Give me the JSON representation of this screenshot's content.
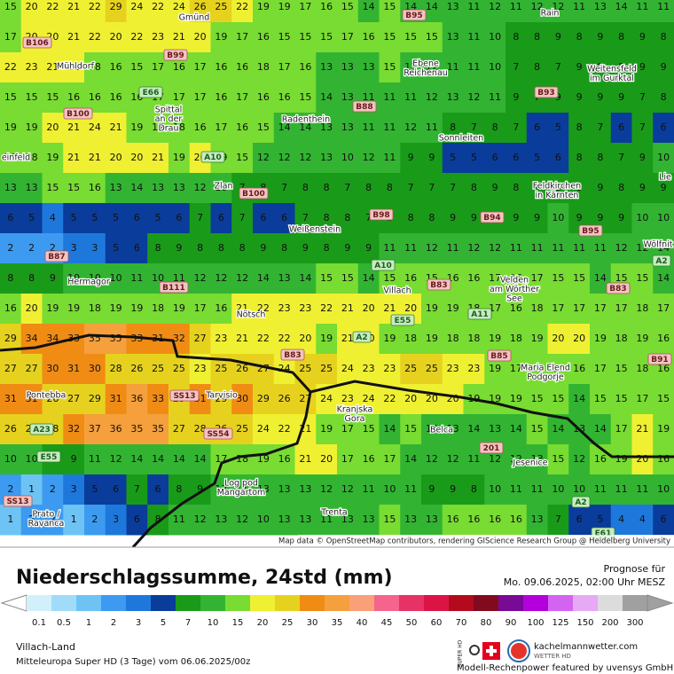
{
  "map": {
    "rows": [
      [
        15,
        20,
        22,
        21,
        22,
        29,
        24,
        22,
        24,
        26,
        25,
        22,
        19,
        19,
        17,
        16,
        15,
        14,
        15,
        14,
        14,
        13,
        11,
        12,
        11,
        12,
        12,
        11,
        13,
        14,
        11,
        11
      ],
      [
        17,
        20,
        20,
        21,
        22,
        20,
        22,
        23,
        21,
        20,
        19,
        17,
        16,
        15,
        15,
        15,
        17,
        16,
        15,
        15,
        15,
        13,
        11,
        10,
        8,
        8,
        9,
        8,
        9,
        8,
        9,
        8
      ],
      [
        22,
        23,
        21,
        21,
        18,
        16,
        15,
        17,
        16,
        17,
        16,
        16,
        18,
        17,
        16,
        13,
        13,
        13,
        15,
        13,
        12,
        11,
        11,
        10,
        7,
        8,
        7,
        9,
        9,
        8,
        9,
        9
      ],
      [
        15,
        15,
        15,
        16,
        16,
        16,
        16,
        17,
        17,
        17,
        16,
        17,
        16,
        16,
        15,
        14,
        13,
        11,
        11,
        11,
        12,
        13,
        12,
        11,
        9,
        7,
        9,
        9,
        9,
        9,
        7,
        8
      ],
      [
        19,
        19,
        20,
        21,
        24,
        21,
        19,
        17,
        18,
        16,
        17,
        16,
        15,
        14,
        14,
        13,
        13,
        11,
        11,
        12,
        11,
        8,
        7,
        8,
        7,
        6,
        5,
        8,
        7,
        6,
        7,
        6
      ],
      [
        18,
        18,
        19,
        21,
        21,
        20,
        20,
        21,
        19,
        20,
        19,
        15,
        12,
        12,
        12,
        13,
        10,
        12,
        11,
        9,
        9,
        5,
        5,
        6,
        6,
        5,
        6,
        8,
        8,
        7,
        9,
        10
      ],
      [
        13,
        13,
        15,
        15,
        16,
        13,
        14,
        13,
        13,
        12,
        10,
        7,
        8,
        7,
        8,
        8,
        7,
        8,
        8,
        7,
        7,
        7,
        8,
        9,
        8,
        9,
        9,
        8,
        9,
        8,
        9,
        9
      ],
      [
        6,
        5,
        4,
        5,
        5,
        5,
        6,
        5,
        6,
        7,
        6,
        7,
        6,
        6,
        7,
        8,
        8,
        7,
        8,
        8,
        8,
        9,
        9,
        9,
        9,
        9,
        10,
        9,
        9,
        9,
        10,
        10
      ],
      [
        2,
        2,
        2,
        3,
        3,
        5,
        6,
        8,
        9,
        8,
        8,
        8,
        9,
        8,
        9,
        8,
        9,
        9,
        11,
        11,
        12,
        11,
        12,
        12,
        11,
        11,
        11,
        11,
        11,
        12,
        12,
        14
      ],
      [
        8,
        8,
        9,
        10,
        10,
        10,
        11,
        10,
        11,
        12,
        12,
        12,
        14,
        13,
        14,
        15,
        15,
        14,
        15,
        16,
        15,
        16,
        16,
        17,
        16,
        17,
        15,
        15,
        14,
        15,
        15,
        14
      ],
      [
        16,
        20,
        19,
        19,
        18,
        19,
        19,
        18,
        19,
        17,
        16,
        21,
        22,
        23,
        23,
        22,
        21,
        20,
        21,
        20,
        19,
        19,
        18,
        17,
        16,
        18,
        17,
        17,
        17,
        17,
        18,
        17
      ],
      [
        29,
        34,
        34,
        33,
        35,
        35,
        33,
        31,
        32,
        27,
        23,
        21,
        22,
        22,
        20,
        19,
        21,
        20,
        19,
        18,
        19,
        18,
        18,
        19,
        18,
        19,
        20,
        20,
        19,
        18,
        19,
        16
      ],
      [
        27,
        27,
        30,
        31,
        30,
        28,
        26,
        25,
        25,
        23,
        25,
        26,
        27,
        24,
        25,
        25,
        24,
        23,
        23,
        25,
        25,
        23,
        23,
        19,
        17,
        15,
        16,
        16,
        17,
        15,
        18,
        16
      ],
      [
        31,
        31,
        26,
        27,
        29,
        31,
        36,
        33,
        29,
        31,
        29,
        30,
        29,
        26,
        27,
        24,
        23,
        24,
        22,
        20,
        20,
        20,
        19,
        19,
        19,
        15,
        15,
        14,
        15,
        15,
        17,
        15
      ],
      [
        26,
        29,
        28,
        32,
        37,
        36,
        35,
        35,
        27,
        28,
        26,
        25,
        24,
        22,
        21,
        19,
        17,
        15,
        14,
        15,
        14,
        13,
        14,
        13,
        14,
        15,
        14,
        13,
        14,
        17,
        21,
        19
      ],
      [
        10,
        10,
        8,
        9,
        11,
        12,
        14,
        14,
        14,
        14,
        17,
        18,
        19,
        16,
        21,
        20,
        17,
        16,
        17,
        14,
        12,
        12,
        11,
        12,
        12,
        13,
        15,
        12,
        16,
        19,
        20,
        16
      ],
      [
        2,
        1,
        2,
        3,
        5,
        6,
        7,
        6,
        8,
        9,
        13,
        11,
        13,
        13,
        13,
        12,
        12,
        11,
        10,
        11,
        9,
        9,
        8,
        10,
        11,
        11,
        10,
        10,
        11,
        11,
        11,
        10
      ],
      [
        1,
        2,
        2,
        1,
        2,
        3,
        6,
        8,
        11,
        12,
        13,
        12,
        10,
        13,
        13,
        11,
        13,
        13,
        15,
        13,
        13,
        16,
        16,
        16,
        16,
        13,
        7,
        6,
        5,
        4,
        4,
        6
      ]
    ],
    "places": [
      [
        "Gmünd"
      ],
      [
        "Rain"
      ],
      [
        "Mühldorf"
      ],
      [
        "Ebene",
        "Reichenau"
      ],
      [
        "Weitensfeld",
        "im Gurktal"
      ],
      [
        "Spittal",
        "an der",
        "Drau"
      ],
      [
        "Radenthein"
      ],
      [
        "Sonnleiten"
      ],
      [
        "einfeld"
      ],
      [
        "Zlan"
      ],
      [
        "Feldkirchen",
        "in Kärnten"
      ],
      [
        "Weißenstein"
      ],
      [
        "Lie"
      ],
      [
        "Wölfnit"
      ],
      [
        "Hermagor"
      ],
      [
        "Villach"
      ],
      [
        "Velden",
        "am Wörther",
        "See"
      ],
      [
        "Nötsch"
      ],
      [
        "Pontebba"
      ],
      [
        "Tarvisio"
      ],
      [
        "Kranjska",
        "Gora"
      ],
      [
        "Maria Elend",
        "Podgorje"
      ],
      [
        "Belca"
      ],
      [
        "Jesenice"
      ],
      [
        "Log pod",
        "Mangartom"
      ],
      [
        "Trenta"
      ],
      [
        "Prato /",
        "Ravanca"
      ]
    ],
    "roads": [
      "B95",
      "B106",
      "B99",
      "E66",
      "B100",
      "B88",
      "B93",
      "A10",
      "B100",
      "B98",
      "B94",
      "B95",
      "B87",
      "A10",
      "A2",
      "B111",
      "B83",
      "B83",
      "E55",
      "A11",
      "A2",
      "B83",
      "B85",
      "B91",
      "SS13",
      "A23",
      "SS54",
      "201",
      "E55",
      "SS13",
      "A2",
      "E61"
    ],
    "attribution": "Map data © OpenStreetMap contributors, rendering GIScience Research Group @ Heidelberg University"
  },
  "footer": {
    "title": "Niederschlagssumme, 24std (mm)",
    "forecast_label": "Prognose für",
    "forecast_time": "Mo. 09.06.2025, 02:00 Uhr MESZ",
    "region": "Villach-Land",
    "model": "Mitteleuropa Super HD (3 Tage) vom 06.06.2025/00z",
    "badge": "SUPER HD",
    "brand": "kachelmannwetter.com",
    "brand_sub": "WETTER HD",
    "sponsor": "Modell-Rechenpower featured by uvensys GmbH"
  },
  "legend": {
    "ticks": [
      0.1,
      0.5,
      1,
      2,
      3,
      5,
      7,
      10,
      15,
      20,
      25,
      30,
      35,
      40,
      45,
      50,
      60,
      70,
      80,
      90,
      100,
      125,
      150,
      200,
      300
    ],
    "colors": [
      "#d2f0fa",
      "#a0dcfa",
      "#6ec3f5",
      "#3c9bf0",
      "#1e78dc",
      "#0a3c9b",
      "#199b19",
      "#32b432",
      "#78dc32",
      "#f0f032",
      "#e6d21e",
      "#f08c14",
      "#f5a03c",
      "#faa078",
      "#f5648c",
      "#e63264",
      "#dc1446",
      "#b40a1e",
      "#820a1e",
      "#780a96",
      "#b400dc",
      "#d264f0",
      "#e6aaf5",
      "#dcdcdc",
      "#a0a0a0"
    ]
  }
}
